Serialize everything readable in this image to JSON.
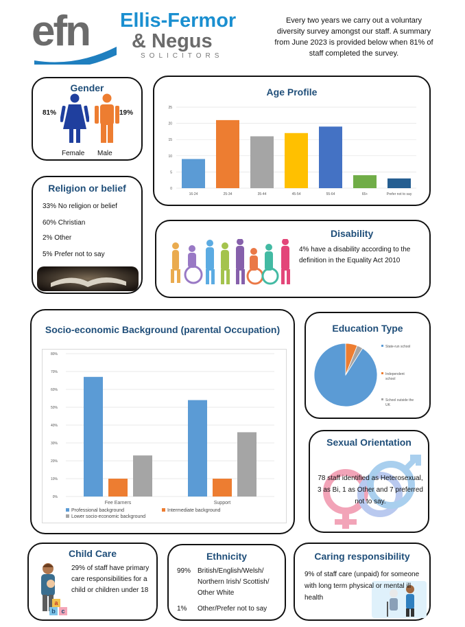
{
  "header": {
    "logo_text": "efn",
    "firm_line1": "Ellis-Fermor",
    "firm_line2": "& Negus",
    "firm_line3": "SOLICITORS",
    "intro": "Every two years we carry out a voluntary diversity survey amongst our staff. A summary from June 2023 is provided below when 81%  of staff completed the survey."
  },
  "gender": {
    "title": "Gender",
    "female_pct": "81%",
    "male_pct": "19%",
    "female_label": "Female",
    "male_label": "Male",
    "female_color": "#1f3f9e",
    "male_color": "#ed7d31"
  },
  "religion": {
    "title": "Religion or belief",
    "items": [
      "33%  No religion or belief",
      "60% Christian",
      "2% Other",
      "5% Prefer not to say"
    ]
  },
  "age": {
    "title": "Age Profile"
  },
  "disability": {
    "title": "Disability",
    "text": "4% have a disability according to the definition in the Equality Act 2010"
  },
  "socio": {
    "title": "Socio-economic Background (parental Occupation)"
  },
  "education": {
    "title": "Education Type"
  },
  "orientation": {
    "title": "Sexual Orientation",
    "text": "78 staff identified as Heterosexual, 3 as Bi, 1 as Other and 7 preferred not to say."
  },
  "childcare": {
    "title": "Child Care",
    "text": "29% of staff have primary care responsibilities for a child or children under 18",
    "blocks": [
      "a",
      "b",
      "c"
    ]
  },
  "ethnicity": {
    "title": "Ethnicity",
    "rows": [
      {
        "pct": "99%",
        "label": "British/English/Welsh/ Northern Irish/ Scottish/ Other White"
      },
      {
        "pct": "1%",
        "label": "Other/Prefer not to say"
      }
    ]
  },
  "caring": {
    "title": "Caring responsibility",
    "text": "9% of staff care (unpaid) for someone with long term physical or mental ill health"
  },
  "chart_data": [
    {
      "id": "age",
      "type": "bar",
      "categories": [
        "16-24",
        "25-34",
        "35-44",
        "45-54",
        "55-64",
        "65+",
        "Prefer not to say"
      ],
      "values": [
        9,
        21,
        16,
        17,
        19,
        4,
        3
      ],
      "colors": [
        "#5b9bd5",
        "#ed7d31",
        "#a5a5a5",
        "#ffc000",
        "#4472c4",
        "#70ad47",
        "#255e91"
      ],
      "yticks": [
        "0",
        "5",
        "10",
        "15",
        "20",
        "25"
      ],
      "ylim": [
        0,
        25
      ],
      "grid": true
    },
    {
      "id": "socio",
      "type": "bar",
      "categories": [
        "Fee Earners",
        "Support"
      ],
      "series": [
        {
          "name": "Professional background",
          "values": [
            67,
            54
          ],
          "color": "#5b9bd5"
        },
        {
          "name": "Intermediate background",
          "values": [
            10,
            10
          ],
          "color": "#ed7d31"
        },
        {
          "name": "Lower socio-economic background",
          "values": [
            23,
            36
          ],
          "color": "#a5a5a5"
        }
      ],
      "yticks": [
        "0%",
        "10%",
        "20%",
        "30%",
        "40%",
        "50%",
        "60%",
        "70%",
        "80%"
      ],
      "ylim": [
        0,
        80
      ],
      "grid": true,
      "legend": "bottom"
    },
    {
      "id": "education",
      "type": "pie",
      "labels": [
        "State-run school",
        "Independent school",
        "School outside the UK"
      ],
      "values": [
        91,
        6,
        3
      ],
      "colors": [
        "#5b9bd5",
        "#ed7d31",
        "#a5a5a5"
      ],
      "legend": "right"
    }
  ]
}
